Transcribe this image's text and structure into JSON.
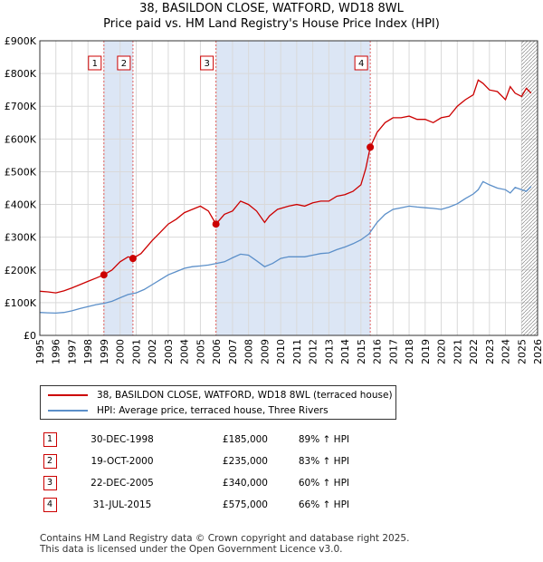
{
  "title_line1": "38, BASILDON CLOSE, WATFORD, WD18 8WL",
  "title_line2": "Price paid vs. HM Land Registry's House Price Index (HPI)",
  "legend": {
    "property": "38, BASILDON CLOSE, WATFORD, WD18 8WL (terraced house)",
    "hpi": "HPI: Average price, terraced house, Three Rivers"
  },
  "colors": {
    "property": "#cc0000",
    "hpi": "#5b8fc9",
    "shade": "#dce6f5",
    "grid": "#d9d9d9"
  },
  "sales": [
    {
      "num": "1",
      "date": "30-DEC-1998",
      "price": "£185,000",
      "hpi": "89% ↑ HPI"
    },
    {
      "num": "2",
      "date": "19-OCT-2000",
      "price": "£235,000",
      "hpi": "83% ↑ HPI"
    },
    {
      "num": "3",
      "date": "22-DEC-2005",
      "price": "£340,000",
      "hpi": "60% ↑ HPI"
    },
    {
      "num": "4",
      "date": "31-JUL-2015",
      "price": "£575,000",
      "hpi": "66% ↑ HPI"
    }
  ],
  "footer_line1": "Contains HM Land Registry data © Crown copyright and database right 2025.",
  "footer_line2": "This data is licensed under the Open Government Licence v3.0.",
  "chart_data": {
    "type": "line",
    "title": "Price paid vs. HM Land Registry's House Price Index (HPI)",
    "xlim": [
      1995,
      2026
    ],
    "ylim": [
      0,
      900000
    ],
    "x_ticks": [
      1995,
      1996,
      1997,
      1998,
      1999,
      2000,
      2001,
      2002,
      2003,
      2004,
      2005,
      2006,
      2007,
      2008,
      2009,
      2010,
      2011,
      2012,
      2013,
      2014,
      2015,
      2016,
      2017,
      2018,
      2019,
      2020,
      2021,
      2022,
      2023,
      2024,
      2025,
      2026
    ],
    "y_ticks": [
      {
        "value": 0,
        "label": "£0"
      },
      {
        "value": 100000,
        "label": "£100K"
      },
      {
        "value": 200000,
        "label": "£200K"
      },
      {
        "value": 300000,
        "label": "£300K"
      },
      {
        "value": 400000,
        "label": "£400K"
      },
      {
        "value": 500000,
        "label": "£500K"
      },
      {
        "value": 600000,
        "label": "£600K"
      },
      {
        "value": 700000,
        "label": "£700K"
      },
      {
        "value": 800000,
        "label": "£800K"
      },
      {
        "value": 900000,
        "label": "£900K"
      }
    ],
    "shaded_ranges": [
      [
        1998.99,
        2000.8
      ],
      [
        2005.97,
        2015.58
      ]
    ],
    "hatch_from": 2025.0,
    "sale_markers": [
      {
        "label": "1",
        "x": 1998.99,
        "y": 185000
      },
      {
        "label": "2",
        "x": 2000.8,
        "y": 235000
      },
      {
        "label": "3",
        "x": 2005.97,
        "y": 340000
      },
      {
        "label": "4",
        "x": 2015.58,
        "y": 575000
      }
    ],
    "series": [
      {
        "name": "38, BASILDON CLOSE, WATFORD, WD18 8WL (terraced house)",
        "color": "#cc0000",
        "x": [
          1995,
          1995.5,
          1996,
          1996.5,
          1997,
          1997.5,
          1998,
          1998.5,
          1998.99,
          1999.5,
          2000,
          2000.5,
          2000.8,
          2001.3,
          2002,
          2002.5,
          2003,
          2003.5,
          2004,
          2004.5,
          2005,
          2005.5,
          2005.97,
          2006.5,
          2007,
          2007.5,
          2008,
          2008.5,
          2009,
          2009.3,
          2009.8,
          2010.5,
          2011,
          2011.5,
          2012,
          2012.5,
          2013,
          2013.5,
          2014,
          2014.5,
          2015,
          2015.3,
          2015.58,
          2016,
          2016.5,
          2017,
          2017.5,
          2018,
          2018.5,
          2019,
          2019.5,
          2020,
          2020.5,
          2021,
          2021.5,
          2022,
          2022.3,
          2022.6,
          2023,
          2023.5,
          2024,
          2024.3,
          2024.6,
          2025,
          2025.3,
          2025.6
        ],
        "y": [
          135000,
          133000,
          130000,
          136000,
          145000,
          155000,
          165000,
          175000,
          185000,
          200000,
          225000,
          240000,
          235000,
          250000,
          290000,
          315000,
          340000,
          355000,
          375000,
          385000,
          395000,
          380000,
          340000,
          370000,
          380000,
          410000,
          400000,
          380000,
          345000,
          365000,
          385000,
          395000,
          400000,
          395000,
          405000,
          410000,
          410000,
          425000,
          430000,
          440000,
          460000,
          510000,
          575000,
          620000,
          650000,
          665000,
          665000,
          670000,
          660000,
          660000,
          650000,
          665000,
          670000,
          700000,
          720000,
          735000,
          780000,
          770000,
          750000,
          745000,
          720000,
          760000,
          740000,
          730000,
          755000,
          740000
        ]
      },
      {
        "name": "HPI: Average price, terraced house, Three Rivers",
        "color": "#5b8fc9",
        "x": [
          1995,
          1995.5,
          1996,
          1996.5,
          1997,
          1997.5,
          1998,
          1998.5,
          1999,
          1999.5,
          2000,
          2000.5,
          2001,
          2001.5,
          2002,
          2002.5,
          2003,
          2003.5,
          2004,
          2004.5,
          2005,
          2005.5,
          2006,
          2006.5,
          2007,
          2007.5,
          2008,
          2008.5,
          2009,
          2009.5,
          2010,
          2010.5,
          2011,
          2011.5,
          2012,
          2012.5,
          2013,
          2013.5,
          2014,
          2014.5,
          2015,
          2015.5,
          2016,
          2016.5,
          2017,
          2017.5,
          2018,
          2018.5,
          2019,
          2019.5,
          2020,
          2020.5,
          2021,
          2021.5,
          2022,
          2022.3,
          2022.6,
          2023,
          2023.5,
          2024,
          2024.3,
          2024.6,
          2025,
          2025.3,
          2025.6
        ],
        "y": [
          70000,
          69000,
          68000,
          70000,
          75000,
          82000,
          88000,
          94000,
          98000,
          104000,
          115000,
          125000,
          130000,
          140000,
          155000,
          170000,
          185000,
          195000,
          205000,
          210000,
          212000,
          215000,
          220000,
          225000,
          237000,
          248000,
          245000,
          228000,
          210000,
          220000,
          235000,
          240000,
          240000,
          240000,
          245000,
          250000,
          252000,
          262000,
          270000,
          280000,
          292000,
          310000,
          345000,
          370000,
          385000,
          390000,
          395000,
          392000,
          390000,
          388000,
          385000,
          392000,
          402000,
          418000,
          432000,
          445000,
          470000,
          460000,
          450000,
          445000,
          435000,
          452000,
          445000,
          440000,
          455000
        ]
      }
    ]
  }
}
